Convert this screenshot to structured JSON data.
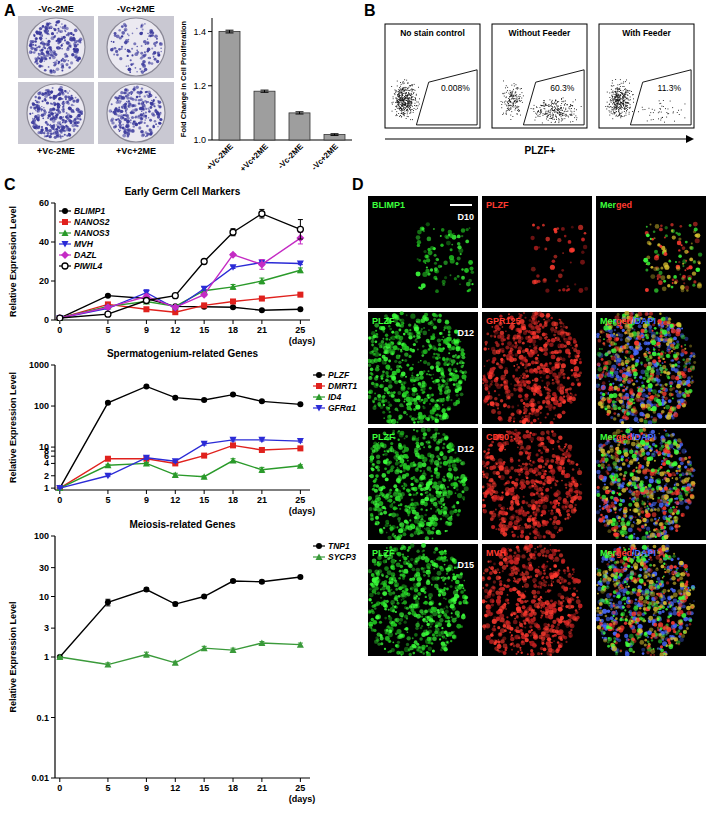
{
  "panel_labels": [
    "A",
    "B",
    "C",
    "D"
  ],
  "plates": {
    "labels": [
      "-Vc-2ME",
      "-Vc+2ME",
      "+Vc-2ME",
      "+Vc+2ME"
    ]
  },
  "flow": {
    "x_label": "PLZF+",
    "plots": [
      {
        "title": "No stain control",
        "percent": 0.008,
        "percent_label": "0.008%"
      },
      {
        "title": "Without Feeder",
        "percent": 60.3,
        "percent_label": "60.3%"
      },
      {
        "title": "With Feeder",
        "percent": 11.3,
        "percent_label": "11.3%"
      }
    ]
  },
  "chart_data": [
    {
      "type": "bar",
      "y_label": "Fold Change in Cell Proliferation",
      "categories": [
        "+Vc-2ME",
        "+Vc+2ME",
        "-Vc-2ME",
        "-Vc+2ME"
      ],
      "values": [
        1.4,
        1.18,
        1.1,
        1.02
      ],
      "errors": [
        0.005,
        0.004,
        0.004,
        0.003
      ],
      "color": "#9e9e9e",
      "ylim": [
        1.0,
        1.45
      ],
      "yticks": [
        {
          "value": 1.0,
          "label": "1.0"
        },
        {
          "value": 1.2,
          "label": "1.2"
        },
        {
          "value": 1.4,
          "label": "1.4"
        }
      ]
    },
    {
      "type": "line",
      "title": "Early Germ Cell Markers",
      "y_label": "Relative Expression Level",
      "x_label": "(days)",
      "x": [
        0,
        5,
        9,
        12,
        15,
        18,
        21,
        25
      ],
      "xlim": [
        -0.5,
        26
      ],
      "xticks": [
        0,
        5,
        9,
        12,
        15,
        18,
        21,
        25
      ],
      "ylim": [
        0,
        60
      ],
      "yticks": [
        0,
        20,
        40,
        60
      ],
      "legend": "upper left",
      "series": [
        {
          "name": "BLIMP1",
          "color": "#000000",
          "marker": "circle",
          "values": [
            1,
            12.5,
            11,
            7,
            6.8,
            6.5,
            5,
            5.5
          ],
          "errors": [
            0,
            0.5,
            0.5,
            0.5,
            0.4,
            0.4,
            0.3,
            0.3
          ]
        },
        {
          "name": "NANOS2",
          "color": "#e0211d",
          "marker": "square",
          "values": [
            1,
            8,
            5.5,
            4,
            7.5,
            9.5,
            11,
            13
          ],
          "errors": [
            0,
            0.4,
            0.3,
            0.3,
            0.4,
            0.5,
            0.5,
            0.5
          ]
        },
        {
          "name": "NANOS3",
          "color": "#2a9a2a",
          "marker": "triangle",
          "values": [
            1,
            7,
            9.5,
            7,
            15,
            17,
            20,
            25.5
          ],
          "errors": [
            0,
            0.4,
            0.5,
            0.4,
            0.6,
            1.2,
            1.5,
            1.2
          ]
        },
        {
          "name": "MVH",
          "color": "#2b2bd6",
          "marker": "triangle-down",
          "values": [
            1,
            6,
            14,
            6,
            16,
            27,
            29.5,
            29
          ],
          "errors": [
            0,
            0.5,
            1.5,
            0.5,
            0.7,
            0.6,
            0.5,
            0.6
          ]
        },
        {
          "name": "DAZL",
          "color": "#c42bc4",
          "marker": "diamond",
          "values": [
            1,
            6.5,
            12,
            6.5,
            13,
            33.5,
            28.5,
            42
          ],
          "errors": [
            0,
            0.5,
            1.2,
            0.4,
            0.6,
            0.6,
            2.5,
            3
          ]
        },
        {
          "name": "PIWIL4",
          "color": "#000000",
          "marker": "open-circle",
          "values": [
            1,
            3,
            10,
            12.5,
            30,
            45,
            54.5,
            46.5
          ],
          "errors": [
            0,
            0.3,
            0.8,
            0.6,
            1,
            1.8,
            2.2,
            5
          ]
        }
      ]
    },
    {
      "type": "line",
      "title": "Spermatogenium-related Genes",
      "y_label": "Relative Expression Level",
      "x_label": "(days)",
      "log": "y",
      "x": [
        0,
        5,
        9,
        12,
        15,
        18,
        21,
        25
      ],
      "xlim": [
        -0.5,
        26
      ],
      "xticks": [
        0,
        5,
        9,
        12,
        15,
        18,
        21,
        25
      ],
      "ylim": [
        0.9,
        1000
      ],
      "yticks": [
        1,
        2,
        4,
        6,
        8,
        10,
        100,
        1000
      ],
      "legend": "right",
      "series": [
        {
          "name": "PLZF",
          "color": "#000000",
          "marker": "circle",
          "values": [
            1,
            120,
            300,
            160,
            140,
            190,
            130,
            110
          ],
          "errors": [
            0,
            8,
            15,
            10,
            8,
            12,
            8,
            6
          ]
        },
        {
          "name": "DMRT1",
          "color": "#e0211d",
          "marker": "square",
          "values": [
            1,
            5.2,
            5.2,
            4,
            6.2,
            11,
            8.5,
            9.3
          ],
          "errors": [
            0,
            0.3,
            0.3,
            0.2,
            0.3,
            0.8,
            0.5,
            0.5
          ]
        },
        {
          "name": "ID4",
          "color": "#2a9a2a",
          "marker": "triangle",
          "values": [
            1,
            3.6,
            4,
            2.1,
            1.9,
            4.7,
            2.8,
            3.5
          ],
          "errors": [
            0,
            0.2,
            0.2,
            0.2,
            0.1,
            0.5,
            0.4,
            0.2
          ]
        },
        {
          "name": "GFRα1",
          "color": "#2b2bd6",
          "marker": "triangle-down",
          "values": [
            1,
            2,
            5.5,
            4.5,
            12,
            15,
            15,
            14
          ],
          "errors": [
            0,
            0.1,
            0.5,
            0.3,
            0.8,
            1,
            1,
            0.8
          ]
        }
      ]
    },
    {
      "type": "line",
      "title": "Meiosis-related Genes",
      "y_label": "Relative Expression Level",
      "x_label": "(days)",
      "log": "y",
      "x": [
        0,
        5,
        9,
        12,
        15,
        18,
        21,
        25
      ],
      "xlim": [
        -0.5,
        26
      ],
      "xticks": [
        0,
        5,
        9,
        12,
        15,
        18,
        21,
        25
      ],
      "ylim": [
        0.01,
        100
      ],
      "yticks": [
        0.01,
        0.1,
        1,
        3,
        10,
        30,
        100
      ],
      "legend": "right",
      "series": [
        {
          "name": "TNP1",
          "color": "#000000",
          "marker": "circle",
          "values": [
            1,
            8,
            13,
            7.5,
            10,
            18,
            17.5,
            21
          ],
          "errors": [
            0,
            1,
            0.8,
            0.5,
            0.5,
            1,
            1,
            1
          ]
        },
        {
          "name": "SYCP3",
          "color": "#3a9a3a",
          "marker": "triangle",
          "values": [
            1,
            0.75,
            1.1,
            0.8,
            1.4,
            1.3,
            1.7,
            1.6
          ],
          "errors": [
            0,
            0.05,
            0.1,
            0.05,
            0.1,
            0.1,
            0.1,
            0.1
          ]
        }
      ]
    }
  ],
  "micrographs": {
    "rows": [
      {
        "day": "D10",
        "green": "BLIMP1",
        "red": "PLZF",
        "merged": [
          "Mer",
          "ged"
        ]
      },
      {
        "day": "D12",
        "green": "PLZF",
        "red": "GPR125",
        "merged": [
          "Mer",
          "ged",
          "/DAPI"
        ]
      },
      {
        "day": "D12",
        "green": "PLZF",
        "red": "CD90",
        "merged": [
          "Mer",
          "ged",
          "/DAPI"
        ]
      },
      {
        "day": "D15",
        "green": "PLZF",
        "red": "MVH",
        "merged": [
          "Mer",
          "ged",
          "/DAPI"
        ]
      }
    ]
  }
}
